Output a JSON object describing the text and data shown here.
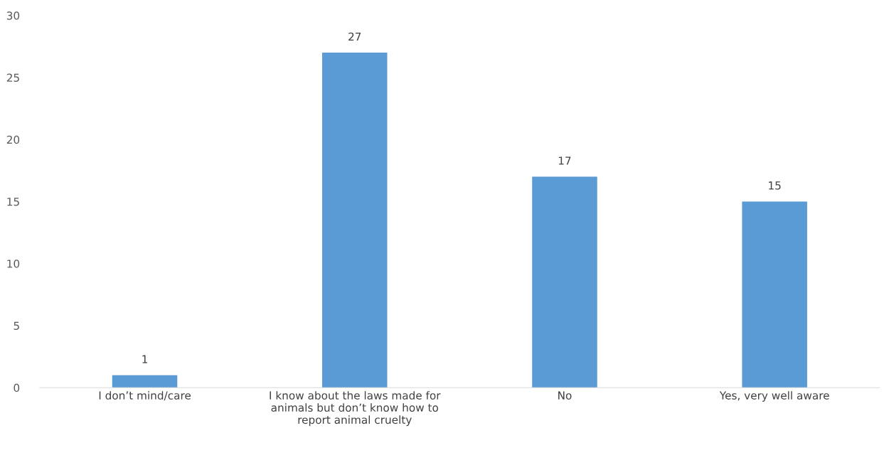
{
  "chart_data": {
    "type": "bar",
    "categories": [
      "I don’t mind/care",
      "I know about the laws made for\nanimals but don’t know how to\nreport animal cruelty",
      "No",
      "Yes, very well aware"
    ],
    "values": [
      1,
      27,
      17,
      15
    ],
    "color": "#5b9bd5",
    "ylim": [
      0,
      30
    ],
    "yticks": [
      0,
      5,
      10,
      15,
      20,
      25,
      30
    ],
    "grid": false,
    "data_labels": true
  }
}
